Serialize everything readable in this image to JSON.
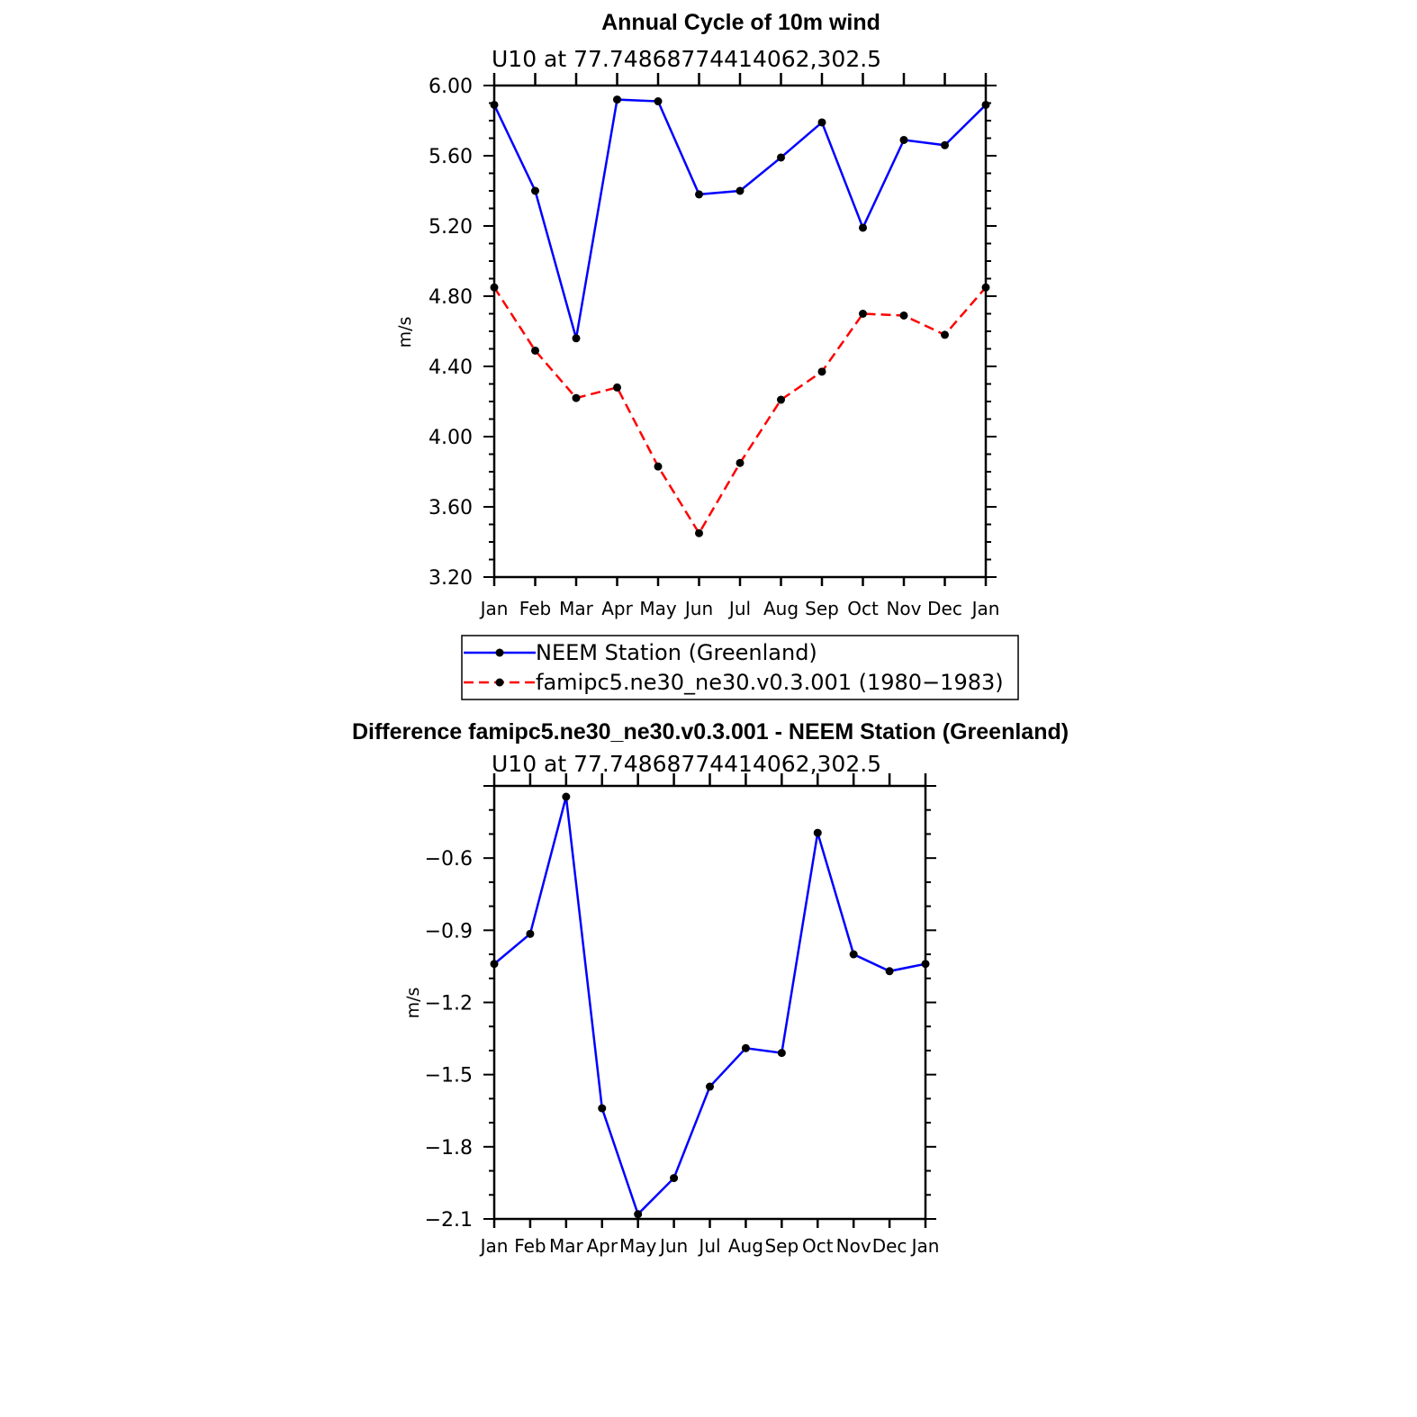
{
  "chart_data": [
    {
      "type": "line",
      "title": "Annual Cycle of 10m wind",
      "subtitle": "U10  at  77.74868774414062,302.5",
      "xlabel": "",
      "ylabel": "m/s",
      "categories": [
        "Jan",
        "Feb",
        "Mar",
        "Apr",
        "May",
        "Jun",
        "Jul",
        "Aug",
        "Sep",
        "Oct",
        "Nov",
        "Dec",
        "Jan"
      ],
      "ylim": [
        3.2,
        6.0
      ],
      "yticks": [
        "6.00",
        "5.60",
        "5.20",
        "4.80",
        "4.40",
        "4.00",
        "3.60",
        "3.20"
      ],
      "series": [
        {
          "name": "NEEM Station (Greenland)",
          "color": "#0000ff",
          "style": "solid",
          "values": [
            5.89,
            5.4,
            4.56,
            5.92,
            5.91,
            5.38,
            5.4,
            5.59,
            5.79,
            5.19,
            5.69,
            5.66,
            5.89
          ]
        },
        {
          "name": "famipc5.ne30_ne30.v0.3.001 (1980−1983)",
          "color": "#ff0000",
          "style": "dashed",
          "values": [
            4.85,
            4.49,
            4.22,
            4.28,
            3.83,
            3.45,
            3.85,
            4.21,
            4.37,
            4.7,
            4.69,
            4.58,
            4.85
          ]
        }
      ],
      "legend": "bottom"
    },
    {
      "type": "line",
      "title": "Difference famipc5.ne30_ne30.v0.3.001 - NEEM Station (Greenland)",
      "subtitle": "U10  at  77.74868774414062,302.5",
      "xlabel": "",
      "ylabel": "m/s",
      "categories": [
        "Jan",
        "Feb",
        "Mar",
        "Apr",
        "May",
        "Jun",
        "Jul",
        "Aug",
        "Sep",
        "Oct",
        "Nov",
        "Dec",
        "Jan"
      ],
      "ylim": [
        -2.1,
        -0.3
      ],
      "yticks": [
        "−0.6",
        "−0.9",
        "−1.2",
        "−1.5",
        "−1.8",
        "−2.1"
      ],
      "series": [
        {
          "name": "Difference",
          "color": "#0000ff",
          "style": "solid",
          "values": [
            -1.04,
            -0.915,
            -0.345,
            -1.64,
            -2.08,
            -1.93,
            -1.55,
            -1.39,
            -1.41,
            -0.495,
            -1.0,
            -1.07,
            -1.04
          ]
        }
      ]
    }
  ]
}
